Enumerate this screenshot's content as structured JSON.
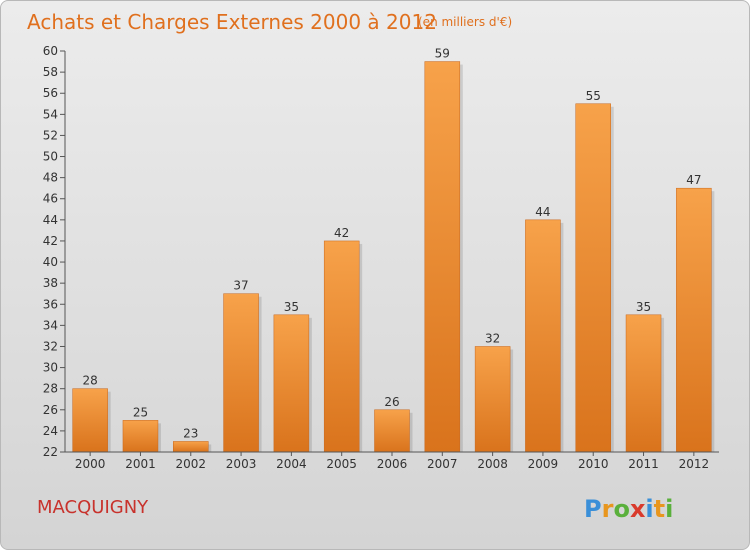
{
  "chart_data": {
    "type": "bar",
    "title": "Achats et Charges Externes 2000 à 2012",
    "subtitle": "(en milliers d'€)",
    "categories": [
      "2000",
      "2001",
      "2002",
      "2003",
      "2004",
      "2005",
      "2006",
      "2007",
      "2008",
      "2009",
      "2010",
      "2011",
      "2012"
    ],
    "values": [
      28,
      25,
      23,
      37,
      35,
      42,
      26,
      59,
      32,
      44,
      55,
      35,
      47
    ],
    "ylim": [
      22,
      60
    ],
    "yticks": [
      22,
      24,
      26,
      28,
      30,
      32,
      34,
      36,
      38,
      40,
      42,
      44,
      46,
      48,
      50,
      52,
      54,
      56,
      58,
      60
    ],
    "grid": false,
    "bar_color": "#f08a2c",
    "location_label": "MACQUIGNY"
  },
  "brand": {
    "letters": [
      "P",
      "r",
      "o",
      "x",
      "i",
      "t",
      "i"
    ],
    "colors": [
      "#3a8fd8",
      "#e8961e",
      "#5ab03c",
      "#d93a2c",
      "#3a8fd8",
      "#e8961e",
      "#5ab03c"
    ]
  },
  "colors": {
    "title": "#e0701e",
    "location": "#c8322c"
  }
}
